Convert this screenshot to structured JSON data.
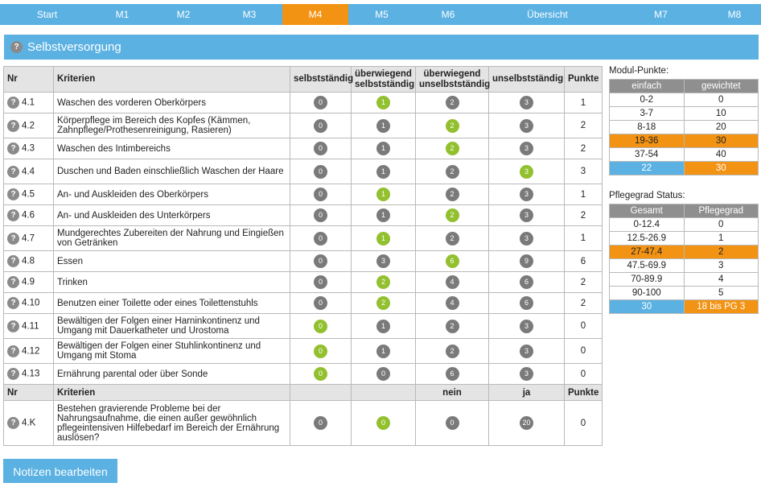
{
  "nav": {
    "items": [
      {
        "label": "Start",
        "active": false
      },
      {
        "label": "M1",
        "active": false
      },
      {
        "label": "M2",
        "active": false
      },
      {
        "label": "M3",
        "active": false
      },
      {
        "label": "M4",
        "active": true
      },
      {
        "label": "M5",
        "active": false
      },
      {
        "label": "M6",
        "active": false
      },
      {
        "label": "Übersicht",
        "active": false
      },
      {
        "label": "M7",
        "active": false
      },
      {
        "label": "M8",
        "active": false
      }
    ]
  },
  "section": {
    "title": "Selbstversorgung",
    "help_glyph": "?"
  },
  "table": {
    "headers": {
      "nr": "Nr",
      "kriterien": "Kriterien",
      "col1": "selbstständig",
      "col2": "überwiegend selbstständig",
      "col3": "überwiegend unselbstständig",
      "col4": "unselbstständig",
      "punkte": "Punkte"
    },
    "rows": [
      {
        "nr": "4.1",
        "crit": "Waschen des vorderen Oberkörpers",
        "opts": [
          "0",
          "1",
          "2",
          "3"
        ],
        "sel": 1,
        "points": "1"
      },
      {
        "nr": "4.2",
        "crit": "Körperpflege im Bereich des Kopfes (Kämmen, Zahnpflege/Prothesenreinigung, Rasieren)",
        "opts": [
          "0",
          "1",
          "2",
          "3"
        ],
        "sel": 2,
        "points": "2"
      },
      {
        "nr": "4.3",
        "crit": "Waschen des Intimbereichs",
        "opts": [
          "0",
          "1",
          "2",
          "3"
        ],
        "sel": 2,
        "points": "2"
      },
      {
        "nr": "4.4",
        "crit": "Duschen und Baden einschließlich Waschen der Haare",
        "opts": [
          "0",
          "1",
          "2",
          "3"
        ],
        "sel": 3,
        "points": "3"
      },
      {
        "nr": "4.5",
        "crit": "An- und Auskleiden des Oberkörpers",
        "opts": [
          "0",
          "1",
          "2",
          "3"
        ],
        "sel": 1,
        "points": "1"
      },
      {
        "nr": "4.6",
        "crit": "An- und Auskleiden des Unterkörpers",
        "opts": [
          "0",
          "1",
          "2",
          "3"
        ],
        "sel": 2,
        "points": "2"
      },
      {
        "nr": "4.7",
        "crit": "Mundgerechtes Zubereiten der Nahrung und Eingießen von Getränken",
        "opts": [
          "0",
          "1",
          "2",
          "3"
        ],
        "sel": 1,
        "points": "1"
      },
      {
        "nr": "4.8",
        "crit": "Essen",
        "opts": [
          "0",
          "3",
          "6",
          "9"
        ],
        "sel": 2,
        "points": "6"
      },
      {
        "nr": "4.9",
        "crit": "Trinken",
        "opts": [
          "0",
          "2",
          "4",
          "6"
        ],
        "sel": 1,
        "points": "2"
      },
      {
        "nr": "4.10",
        "crit": "Benutzen einer Toilette oder eines Toilettenstuhls",
        "opts": [
          "0",
          "2",
          "4",
          "6"
        ],
        "sel": 1,
        "points": "2"
      },
      {
        "nr": "4.11",
        "crit": "Bewältigen der Folgen einer Harninkontinenz und Umgang mit Dauerkatheter und Urostoma",
        "opts": [
          "0",
          "1",
          "2",
          "3"
        ],
        "sel": 0,
        "points": "0"
      },
      {
        "nr": "4.12",
        "crit": "Bewältigen der Folgen einer Stuhlinkontinenz und Umgang mit Stoma",
        "opts": [
          "0",
          "1",
          "2",
          "3"
        ],
        "sel": 0,
        "points": "0"
      },
      {
        "nr": "4.13",
        "crit": "Ernährung parental oder über Sonde",
        "opts": [
          "0",
          "0",
          "6",
          "3"
        ],
        "sel": 0,
        "points": "0"
      }
    ],
    "subheader": {
      "nr": "Nr",
      "kriterien": "Kriterien",
      "nein": "nein",
      "ja": "ja",
      "punkte": "Punkte"
    },
    "special": {
      "nr": "4.K",
      "crit": "Bestehen gravierende Probleme bei der Nahrungsaufnahme, die einen außer gewöhnlich pflegeintensiven Hilfebedarf im Bereich der Ernährung auslösen?",
      "opts": [
        "0",
        "0",
        "0",
        "20"
      ],
      "sel": 1,
      "points": "0"
    }
  },
  "modul_punkte": {
    "title": "Modul-Punkte:",
    "headers": [
      "einfach",
      "gewichtet"
    ],
    "rows": [
      [
        "0-2",
        "0"
      ],
      [
        "3-7",
        "10"
      ],
      [
        "8-18",
        "20"
      ],
      [
        "19-36",
        "30"
      ],
      [
        "37-54",
        "40"
      ]
    ],
    "highlight_index": 3,
    "total": [
      "22",
      "30"
    ]
  },
  "pflegegrad": {
    "title": "Pflegegrad Status:",
    "headers": [
      "Gesamt",
      "Pflegegrad"
    ],
    "rows": [
      [
        "0-12.4",
        "0"
      ],
      [
        "12.5-26.9",
        "1"
      ],
      [
        "27-47.4",
        "2"
      ],
      [
        "47.5-69.9",
        "3"
      ],
      [
        "70-89.9",
        "4"
      ],
      [
        "90-100",
        "5"
      ]
    ],
    "highlight_index": 2,
    "total": [
      "30",
      "18 bis PG 3"
    ]
  },
  "notes_button": "Notizen bearbeiten",
  "colors": {
    "accent_blue": "#5ab1e2",
    "accent_orange": "#f39314",
    "selected_green": "#92c02e",
    "option_gray": "#7a7a7a"
  }
}
